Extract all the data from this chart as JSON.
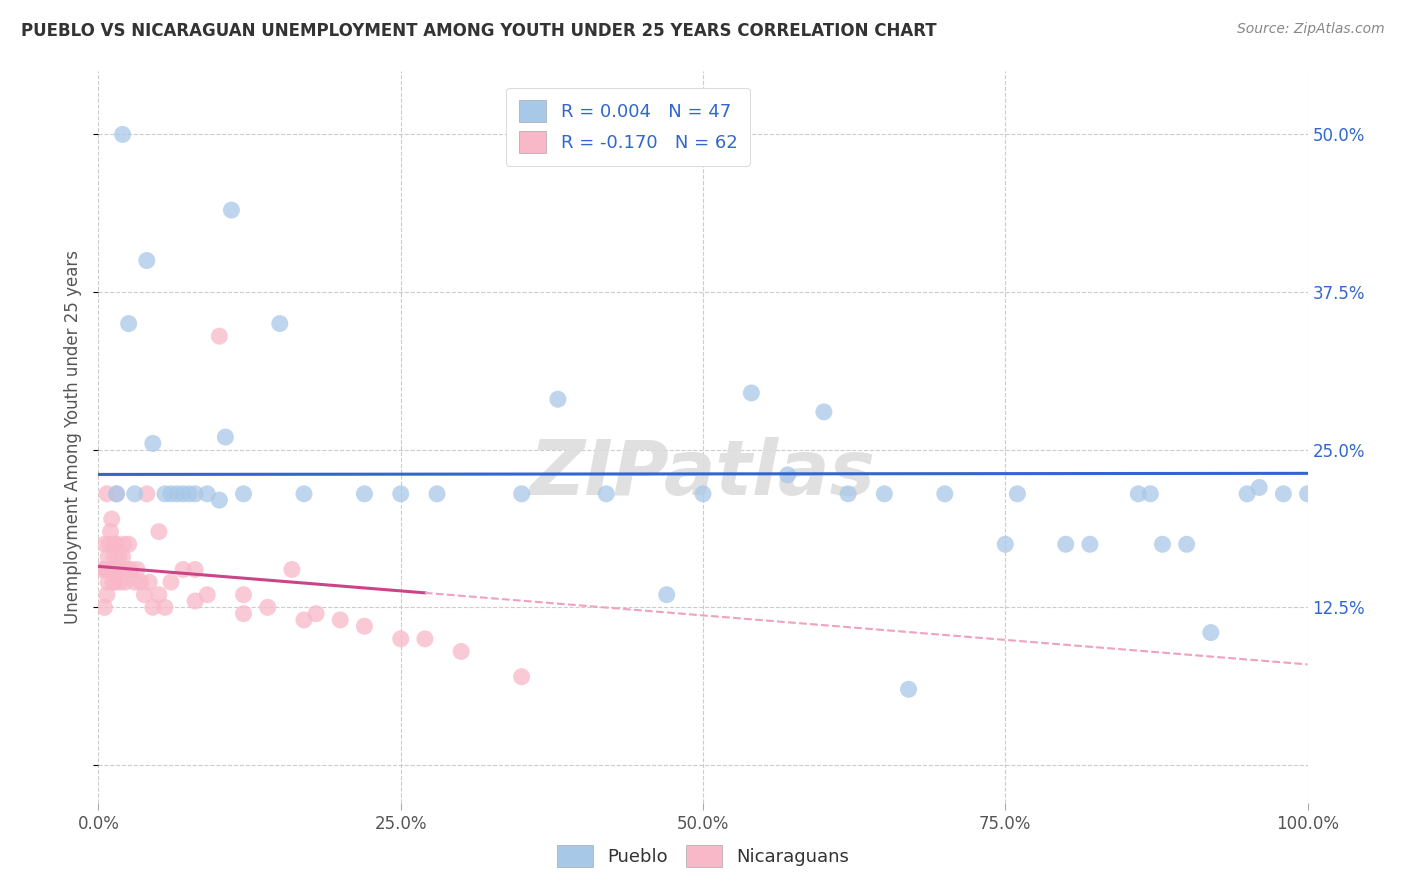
{
  "title": "PUEBLO VS NICARAGUAN UNEMPLOYMENT AMONG YOUTH UNDER 25 YEARS CORRELATION CHART",
  "source": "Source: ZipAtlas.com",
  "ylabel": "Unemployment Among Youth under 25 years",
  "xlim": [
    0.0,
    1.0
  ],
  "ylim": [
    -0.03,
    0.55
  ],
  "xticks": [
    0.0,
    0.25,
    0.5,
    0.75,
    1.0
  ],
  "xticklabels": [
    "0.0%",
    "25.0%",
    "50.0%",
    "75.0%",
    "100.0%"
  ],
  "yticks": [
    0.0,
    0.125,
    0.25,
    0.375,
    0.5
  ],
  "yticklabels": [
    "",
    "12.5%",
    "25.0%",
    "37.5%",
    "50.0%"
  ],
  "pueblo_R": "0.004",
  "pueblo_N": "47",
  "nicaraguan_R": "-0.170",
  "nicaraguan_N": "62",
  "pueblo_color": "#a8c8e8",
  "nicaraguan_color": "#f8b8c8",
  "pueblo_line_color": "#3366cc",
  "nicaraguan_line_color": "#cc4488",
  "nicaraguan_dash_color": "#f0a0c0",
  "background_color": "#ffffff",
  "watermark": "ZIPatlas",
  "pueblo_line_y": 0.213,
  "pueblo_x": [
    0.015,
    0.02,
    0.025,
    0.03,
    0.04,
    0.045,
    0.055,
    0.06,
    0.065,
    0.07,
    0.075,
    0.08,
    0.09,
    0.1,
    0.105,
    0.11,
    0.12,
    0.15,
    0.17,
    0.22,
    0.25,
    0.28,
    0.35,
    0.38,
    0.42,
    0.47,
    0.5,
    0.54,
    0.57,
    0.6,
    0.62,
    0.65,
    0.67,
    0.7,
    0.75,
    0.76,
    0.8,
    0.82,
    0.86,
    0.87,
    0.88,
    0.9,
    0.92,
    0.95,
    0.96,
    0.98,
    1.0
  ],
  "pueblo_y": [
    0.215,
    0.5,
    0.35,
    0.215,
    0.4,
    0.255,
    0.215,
    0.215,
    0.215,
    0.215,
    0.215,
    0.215,
    0.215,
    0.21,
    0.26,
    0.44,
    0.215,
    0.35,
    0.215,
    0.215,
    0.215,
    0.215,
    0.215,
    0.29,
    0.215,
    0.135,
    0.215,
    0.295,
    0.23,
    0.28,
    0.215,
    0.215,
    0.06,
    0.215,
    0.175,
    0.215,
    0.175,
    0.175,
    0.215,
    0.215,
    0.175,
    0.175,
    0.105,
    0.215,
    0.22,
    0.215,
    0.215
  ],
  "nic_x": [
    0.003,
    0.005,
    0.005,
    0.006,
    0.007,
    0.007,
    0.008,
    0.008,
    0.009,
    0.009,
    0.01,
    0.01,
    0.011,
    0.011,
    0.012,
    0.012,
    0.013,
    0.013,
    0.014,
    0.014,
    0.015,
    0.015,
    0.016,
    0.017,
    0.018,
    0.019,
    0.02,
    0.021,
    0.022,
    0.025,
    0.027,
    0.03,
    0.032,
    0.035,
    0.038,
    0.042,
    0.045,
    0.05,
    0.055,
    0.06,
    0.07,
    0.08,
    0.09,
    0.1,
    0.12,
    0.14,
    0.17,
    0.18,
    0.2,
    0.22,
    0.25,
    0.27,
    0.3,
    0.35,
    0.16,
    0.08,
    0.12,
    0.04,
    0.05,
    0.025,
    0.015,
    0.007
  ],
  "nic_y": [
    0.155,
    0.175,
    0.125,
    0.155,
    0.155,
    0.135,
    0.145,
    0.165,
    0.155,
    0.175,
    0.155,
    0.185,
    0.155,
    0.195,
    0.145,
    0.175,
    0.155,
    0.165,
    0.145,
    0.175,
    0.155,
    0.175,
    0.155,
    0.165,
    0.145,
    0.155,
    0.165,
    0.175,
    0.145,
    0.155,
    0.155,
    0.145,
    0.155,
    0.145,
    0.135,
    0.145,
    0.125,
    0.135,
    0.125,
    0.145,
    0.155,
    0.155,
    0.135,
    0.34,
    0.135,
    0.125,
    0.115,
    0.12,
    0.115,
    0.11,
    0.1,
    0.1,
    0.09,
    0.07,
    0.155,
    0.13,
    0.12,
    0.215,
    0.185,
    0.175,
    0.215,
    0.215
  ]
}
